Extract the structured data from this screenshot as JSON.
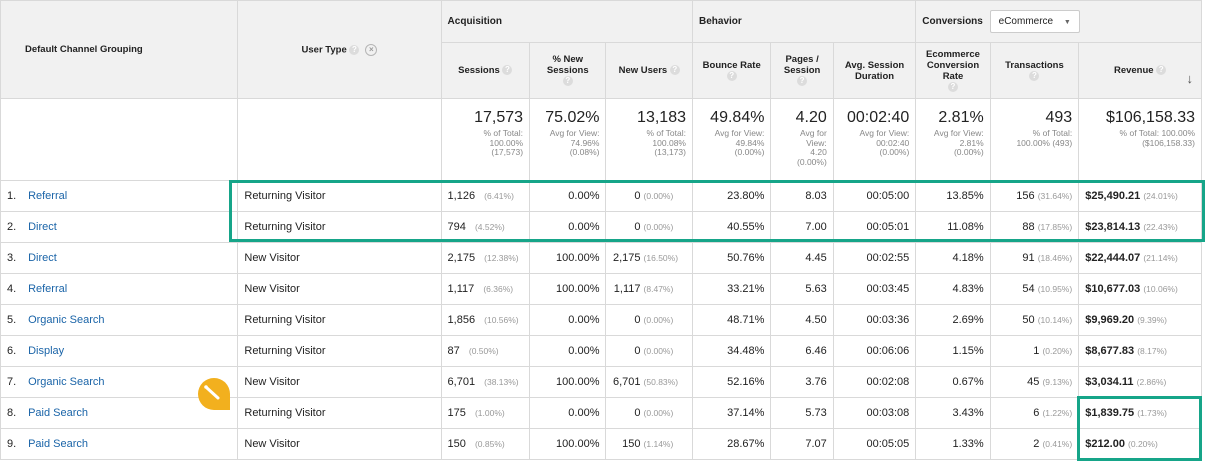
{
  "groups": {
    "acquisition": "Acquisition",
    "behavior": "Behavior",
    "conversions": "Conversions",
    "conversions_dropdown": "eCommerce"
  },
  "columns": {
    "channel": "Default Channel Grouping",
    "user_type": "User Type",
    "sessions": "Sessions",
    "pct_new_sessions": "% New Sessions",
    "new_users": "New Users",
    "bounce_rate": "Bounce Rate",
    "pages_session": "Pages / Session",
    "avg_session_duration": "Avg. Session Duration",
    "ecomm_conv_rate": "Ecommerce Conversion Rate",
    "transactions": "Transactions",
    "revenue": "Revenue"
  },
  "totals": {
    "sessions": {
      "value": "17,573",
      "l1": "% of Total:",
      "l2": "100.00%",
      "l3": "(17,573)"
    },
    "pct_new": {
      "value": "75.02%",
      "l1": "Avg for View:",
      "l2": "74.96%",
      "l3": "(0.08%)"
    },
    "new_users": {
      "value": "13,183",
      "l1": "% of Total:",
      "l2": "100.08%",
      "l3": "(13,173)"
    },
    "bounce": {
      "value": "49.84%",
      "l1": "Avg for View:",
      "l2": "49.84%",
      "l3": "(0.00%)"
    },
    "pages": {
      "value": "4.20",
      "l1": "Avg for",
      "l2": "View:",
      "l3": "4.20",
      "l4": "(0.00%)"
    },
    "duration": {
      "value": "00:02:40",
      "l1": "Avg for View:",
      "l2": "00:02:40",
      "l3": "(0.00%)"
    },
    "conv": {
      "value": "2.81%",
      "l1": "Avg for View:",
      "l2": "2.81%",
      "l3": "(0.00%)"
    },
    "transactions": {
      "value": "493",
      "l1": "% of Total:",
      "l2": "100.00% (493)"
    },
    "revenue": {
      "value": "$106,158.33",
      "l1": "% of Total: 100.00%",
      "l2": "($106,158.33)"
    }
  },
  "rows": [
    {
      "n": "1.",
      "channel": "Referral",
      "user": "Returning Visitor",
      "sessions": "1,126",
      "sessions_pct": "(6.41%)",
      "pct_new": "0.00%",
      "new_users": "0",
      "new_users_pct": "(0.00%)",
      "bounce": "23.80%",
      "pages": "8.03",
      "duration": "00:05:00",
      "conv": "13.85%",
      "trans": "156",
      "trans_pct": "(31.64%)",
      "revenue": "$25,490.21",
      "revenue_pct": "(24.01%)"
    },
    {
      "n": "2.",
      "channel": "Direct",
      "user": "Returning Visitor",
      "sessions": "794",
      "sessions_pct": "(4.52%)",
      "pct_new": "0.00%",
      "new_users": "0",
      "new_users_pct": "(0.00%)",
      "bounce": "40.55%",
      "pages": "7.00",
      "duration": "00:05:01",
      "conv": "11.08%",
      "trans": "88",
      "trans_pct": "(17.85%)",
      "revenue": "$23,814.13",
      "revenue_pct": "(22.43%)"
    },
    {
      "n": "3.",
      "channel": "Direct",
      "user": "New Visitor",
      "sessions": "2,175",
      "sessions_pct": "(12.38%)",
      "pct_new": "100.00%",
      "new_users": "2,175",
      "new_users_pct": "(16.50%)",
      "bounce": "50.76%",
      "pages": "4.45",
      "duration": "00:02:55",
      "conv": "4.18%",
      "trans": "91",
      "trans_pct": "(18.46%)",
      "revenue": "$22,444.07",
      "revenue_pct": "(21.14%)"
    },
    {
      "n": "4.",
      "channel": "Referral",
      "user": "New Visitor",
      "sessions": "1,117",
      "sessions_pct": "(6.36%)",
      "pct_new": "100.00%",
      "new_users": "1,117",
      "new_users_pct": "(8.47%)",
      "bounce": "33.21%",
      "pages": "5.63",
      "duration": "00:03:45",
      "conv": "4.83%",
      "trans": "54",
      "trans_pct": "(10.95%)",
      "revenue": "$10,677.03",
      "revenue_pct": "(10.06%)"
    },
    {
      "n": "5.",
      "channel": "Organic Search",
      "user": "Returning Visitor",
      "sessions": "1,856",
      "sessions_pct": "(10.56%)",
      "pct_new": "0.00%",
      "new_users": "0",
      "new_users_pct": "(0.00%)",
      "bounce": "48.71%",
      "pages": "4.50",
      "duration": "00:03:36",
      "conv": "2.69%",
      "trans": "50",
      "trans_pct": "(10.14%)",
      "revenue": "$9,969.20",
      "revenue_pct": "(9.39%)"
    },
    {
      "n": "6.",
      "channel": "Display",
      "user": "Returning Visitor",
      "sessions": "87",
      "sessions_pct": "(0.50%)",
      "pct_new": "0.00%",
      "new_users": "0",
      "new_users_pct": "(0.00%)",
      "bounce": "34.48%",
      "pages": "6.46",
      "duration": "00:06:06",
      "conv": "1.15%",
      "trans": "1",
      "trans_pct": "(0.20%)",
      "revenue": "$8,677.83",
      "revenue_pct": "(8.17%)"
    },
    {
      "n": "7.",
      "channel": "Organic Search",
      "user": "New Visitor",
      "sessions": "6,701",
      "sessions_pct": "(38.13%)",
      "pct_new": "100.00%",
      "new_users": "6,701",
      "new_users_pct": "(50.83%)",
      "bounce": "52.16%",
      "pages": "3.76",
      "duration": "00:02:08",
      "conv": "0.67%",
      "trans": "45",
      "trans_pct": "(9.13%)",
      "revenue": "$3,034.11",
      "revenue_pct": "(2.86%)"
    },
    {
      "n": "8.",
      "channel": "Paid Search",
      "user": "Returning Visitor",
      "sessions": "175",
      "sessions_pct": "(1.00%)",
      "pct_new": "0.00%",
      "new_users": "0",
      "new_users_pct": "(0.00%)",
      "bounce": "37.14%",
      "pages": "5.73",
      "duration": "00:03:08",
      "conv": "3.43%",
      "trans": "6",
      "trans_pct": "(1.22%)",
      "revenue": "$1,839.75",
      "revenue_pct": "(1.73%)"
    },
    {
      "n": "9.",
      "channel": "Paid Search",
      "user": "New Visitor",
      "sessions": "150",
      "sessions_pct": "(0.85%)",
      "pct_new": "100.00%",
      "new_users": "150",
      "new_users_pct": "(1.14%)",
      "bounce": "28.67%",
      "pages": "7.07",
      "duration": "00:05:05",
      "conv": "1.33%",
      "trans": "2",
      "trans_pct": "(0.41%)",
      "revenue": "$212.00",
      "revenue_pct": "(0.20%)"
    }
  ],
  "colors": {
    "highlight": "#16a589",
    "link": "#1a64a8",
    "marker": "#f2b01e"
  }
}
